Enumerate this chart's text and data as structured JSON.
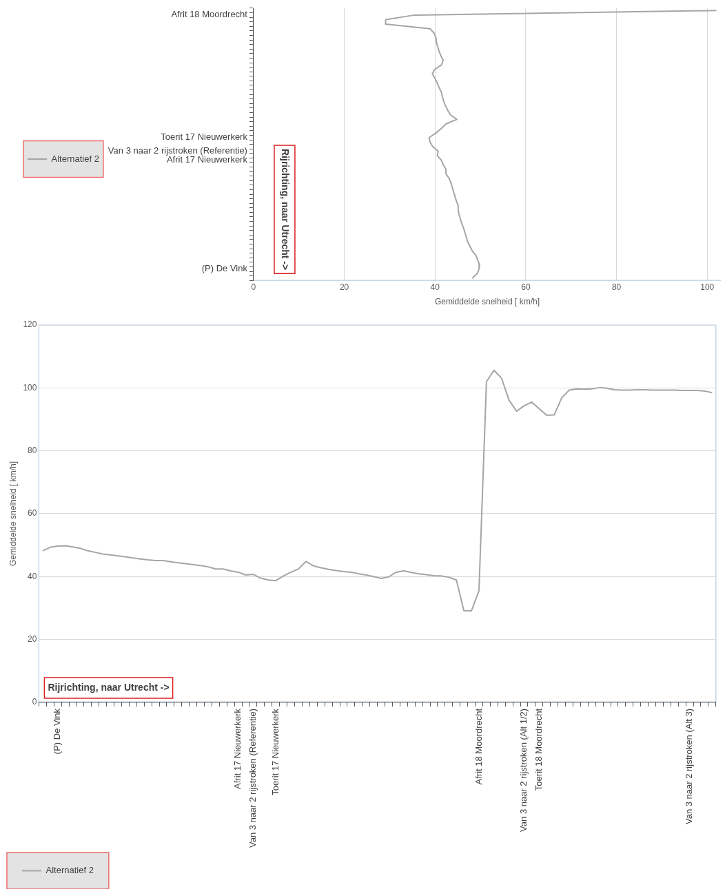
{
  "chart_data": [
    {
      "type": "line",
      "orientation": "horizontal",
      "xlabel": "Gemiddelde snelheid [ km/h]",
      "categories": [
        null,
        "Afrit 18 Moordrecht",
        null,
        null,
        null,
        null,
        null,
        null,
        null,
        null,
        null,
        null,
        null,
        null,
        null,
        null,
        null,
        null,
        null,
        null,
        null,
        null,
        null,
        null,
        null,
        null,
        null,
        null,
        "Toerit 17 Nieuwerkerk",
        null,
        null,
        "Van 3 naar 2 rijstroken (Referentie)",
        null,
        "Afrit 17 Nieuwerkerk",
        null,
        null,
        null,
        null,
        null,
        null,
        null,
        null,
        null,
        null,
        null,
        null,
        null,
        null,
        null,
        null,
        null,
        null,
        null,
        null,
        null,
        null,
        null,
        "(P) De Vink",
        null,
        null
      ],
      "series": [
        {
          "name": "Alternatief 2",
          "color": "#a5a5a5",
          "values": [
            102.0,
            35.5,
            29.1,
            29.1,
            38.9,
            39.8,
            40.2,
            40.3,
            40.6,
            40.9,
            41.3,
            41.8,
            41.4,
            39.9,
            39.4,
            40.0,
            40.5,
            40.9,
            41.4,
            41.6,
            41.9,
            42.3,
            42.8,
            43.4,
            44.8,
            42.4,
            41.4,
            40.2,
            38.7,
            38.9,
            39.5,
            40.7,
            40.5,
            41.4,
            41.8,
            42.4,
            42.4,
            43.1,
            43.5,
            43.8,
            44.1,
            44.4,
            44.7,
            45.1,
            45.1,
            45.3,
            45.6,
            45.9,
            46.3,
            46.6,
            46.9,
            47.2,
            47.7,
            48.2,
            49.0,
            49.4,
            49.8,
            49.7,
            49.3,
            48.2
          ]
        }
      ],
      "xlim": [
        0,
        103
      ],
      "xticks": [
        0,
        20,
        40,
        60,
        80,
        100
      ],
      "grid": "x",
      "legend": "left",
      "marker": "none",
      "line_style": "solid",
      "annotations": [
        "Rijrichting, naar Utrecht ->"
      ]
    },
    {
      "type": "line",
      "ylabel": "Gemiddelde snelheid [ km/h]",
      "categories": [
        null,
        null,
        "(P) De Vink",
        null,
        null,
        null,
        null,
        null,
        null,
        null,
        null,
        null,
        null,
        null,
        null,
        null,
        null,
        null,
        null,
        null,
        null,
        null,
        null,
        null,
        null,
        null,
        "Afrit 17 Nieuwerkerk",
        null,
        "Van 3 naar 2 rijstroken (Referentie)",
        null,
        null,
        "Toerit 17 Nieuwerkerk",
        null,
        null,
        null,
        null,
        null,
        null,
        null,
        null,
        null,
        null,
        null,
        null,
        null,
        null,
        null,
        null,
        null,
        null,
        null,
        null,
        null,
        null,
        null,
        null,
        null,
        null,
        "Afrit 18 Moordrecht",
        null,
        null,
        null,
        null,
        null,
        "Van 3 naar 2 rijstroken (Alt 1/2)",
        null,
        "Toerit 18 Moordrecht",
        null,
        null,
        null,
        null,
        null,
        null,
        null,
        null,
        null,
        null,
        null,
        null,
        null,
        null,
        null,
        null,
        null,
        null,
        null,
        "Van 3 naar 2 rijstroken (Alt 3)",
        null,
        null,
        null
      ],
      "series": [
        {
          "name": "Alternatief 2",
          "color": "#a5a5a5",
          "values": [
            48.2,
            49.3,
            49.7,
            49.8,
            49.4,
            49.0,
            48.2,
            47.7,
            47.2,
            46.9,
            46.6,
            46.3,
            45.9,
            45.6,
            45.3,
            45.1,
            45.1,
            44.7,
            44.4,
            44.1,
            43.8,
            43.5,
            43.1,
            42.4,
            42.4,
            41.8,
            41.4,
            40.5,
            40.7,
            39.5,
            38.9,
            38.7,
            40.2,
            41.4,
            42.4,
            44.8,
            43.4,
            42.8,
            42.3,
            41.9,
            41.6,
            41.4,
            40.9,
            40.5,
            40.0,
            39.4,
            39.9,
            41.4,
            41.8,
            41.3,
            40.9,
            40.6,
            40.3,
            40.2,
            39.8,
            38.9,
            29.1,
            29.1,
            35.5,
            102.0,
            105.6,
            103.1,
            96.1,
            92.6,
            94.3,
            95.5,
            93.4,
            91.3,
            91.4,
            96.8,
            99.3,
            99.7,
            99.6,
            99.7,
            100.1,
            99.9,
            99.4,
            99.3,
            99.3,
            99.4,
            99.4,
            99.3,
            99.3,
            99.3,
            99.3,
            99.2,
            99.2,
            99.2,
            99.0,
            98.5
          ]
        }
      ],
      "ylim": [
        0,
        120
      ],
      "yticks": [
        0,
        20,
        40,
        60,
        80,
        100,
        120
      ],
      "grid": "y",
      "legend": "bottom left",
      "marker": "none",
      "line_style": "solid",
      "annotations": [
        "Rijrichting, naar Utrecht ->"
      ]
    }
  ]
}
